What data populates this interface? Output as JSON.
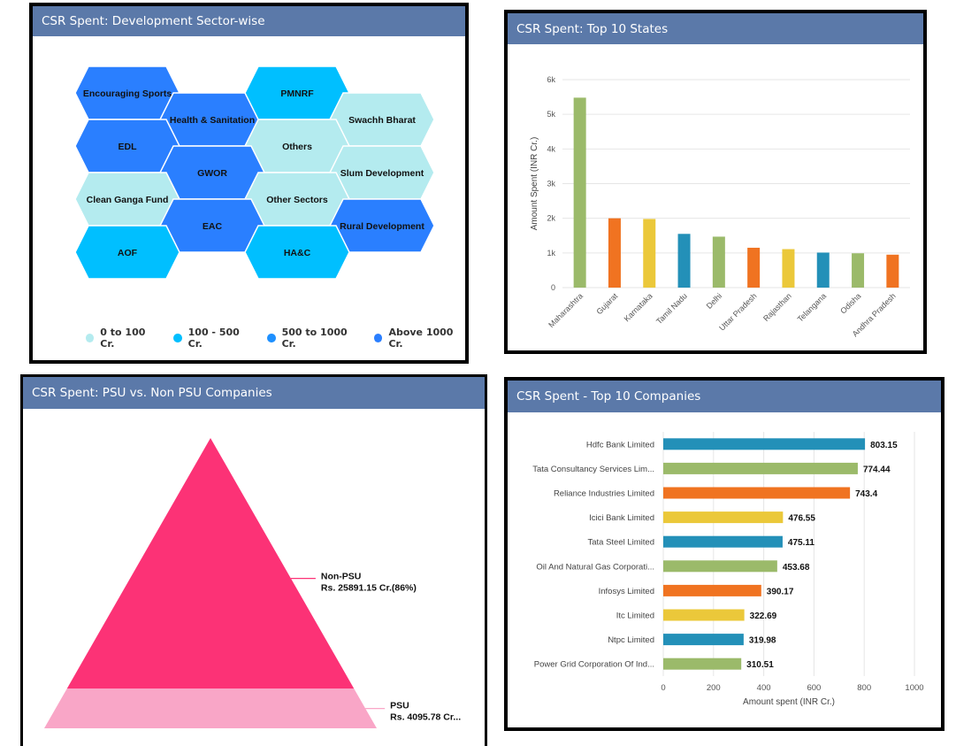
{
  "colors": {
    "header": "#5b79a9",
    "cat_0_100": "#b4ebef",
    "cat_100_500": "#00bfff",
    "cat_500_1000": "#1e90ff",
    "cat_above_1000": "#2a7fff"
  },
  "panels": {
    "sector": {
      "title": "CSR Spent: Development Sector-wise"
    },
    "states": {
      "title": "CSR Spent: Top 10 States"
    },
    "psu": {
      "title": "CSR Spent: PSU vs. Non PSU Companies"
    },
    "companies": {
      "title": "CSR Spent - Top 10 Companies"
    }
  },
  "chart_data": [
    {
      "type": "heatmap",
      "title": "CSR Spent: Development Sector-wise",
      "cells": [
        {
          "label": "Encouraging Sports",
          "category": "above_1000"
        },
        {
          "label": "Health & Sanitation",
          "category": "above_1000"
        },
        {
          "label": "PMNRF",
          "category": "100_500"
        },
        {
          "label": "Swachh Bharat",
          "category": "0_100"
        },
        {
          "label": "EDL",
          "category": "above_1000"
        },
        {
          "label": "Others",
          "category": "0_100"
        },
        {
          "label": "GWOR",
          "category": "above_1000"
        },
        {
          "label": "Slum Development",
          "category": "0_100"
        },
        {
          "label": "Clean Ganga Fund",
          "category": "0_100"
        },
        {
          "label": "Other Sectors",
          "category": "0_100"
        },
        {
          "label": "EAC",
          "category": "above_1000"
        },
        {
          "label": "Rural Development",
          "category": "above_1000"
        },
        {
          "label": "AOF",
          "category": "100_500"
        },
        {
          "label": "HA&C",
          "category": "100_500"
        }
      ],
      "legend": [
        {
          "key": "0_100",
          "label": "0 to 100 Cr."
        },
        {
          "key": "100_500",
          "label": "100 - 500 Cr."
        },
        {
          "key": "500_1000",
          "label": "500 to 1000 Cr."
        },
        {
          "key": "above_1000",
          "label": "Above 1000 Cr."
        }
      ]
    },
    {
      "type": "bar",
      "title": "CSR Spent: Top 10 States",
      "ylabel": "Amount Spent (INR Cr.)",
      "ylim": [
        0,
        6000
      ],
      "yticks": [
        "0",
        "1k",
        "2k",
        "3k",
        "4k",
        "5k",
        "6k"
      ],
      "categories": [
        "Maharashtra",
        "Gujarat",
        "Karnataka",
        "Tamil Nadu",
        "Delhi",
        "Uttar Pradesh",
        "Rajasthan",
        "Telangana",
        "Odisha",
        "Andhra Pradesh"
      ],
      "values": [
        5480,
        2000,
        1980,
        1550,
        1470,
        1150,
        1110,
        1010,
        990,
        950
      ],
      "bar_colors": [
        "#9bba6a",
        "#f07321",
        "#ebc83a",
        "#2390b8",
        "#9bba6a",
        "#f07321",
        "#ebc83a",
        "#2390b8",
        "#9bba6a",
        "#f07321"
      ],
      "grid": true
    },
    {
      "type": "pie",
      "title": "CSR Spent: PSU vs. Non PSU Companies",
      "slices": [
        {
          "name": "Non-PSU",
          "label": "Rs. 25891.15 Cr.(86%)",
          "value": 25891.15,
          "color": "#fc3276"
        },
        {
          "name": "PSU",
          "label": "Rs. 4095.78 Cr...",
          "value": 4095.78,
          "color": "#f9a6c7"
        }
      ]
    },
    {
      "type": "bar",
      "title": "CSR Spent - Top 10 Companies",
      "xlabel": "Amount spent (INR Cr.)",
      "xlim": [
        0,
        1000
      ],
      "xticks": [
        "0",
        "200",
        "400",
        "600",
        "800",
        "1000"
      ],
      "categories": [
        "Hdfc Bank Limited",
        "Tata Consultancy Services Lim...",
        "Reliance Industries Limited",
        "Icici Bank Limited",
        "Tata Steel Limited",
        "Oil And Natural Gas Corporati...",
        "Infosys Limited",
        "Itc Limited",
        "Ntpc Limited",
        "Power Grid Corporation Of Ind..."
      ],
      "values": [
        803.15,
        774.44,
        743.4,
        476.55,
        475.11,
        453.68,
        390.17,
        322.69,
        319.98,
        310.51
      ],
      "value_labels": [
        "803.15",
        "774.44",
        "743.4",
        "476.55",
        "475.11",
        "453.68",
        "390.17",
        "322.69",
        "319.98",
        "310.51"
      ],
      "bar_colors": [
        "#2390b8",
        "#9bba6a",
        "#f07321",
        "#ebc83a",
        "#2390b8",
        "#9bba6a",
        "#f07321",
        "#ebc83a",
        "#2390b8",
        "#9bba6a"
      ],
      "grid": true
    }
  ]
}
